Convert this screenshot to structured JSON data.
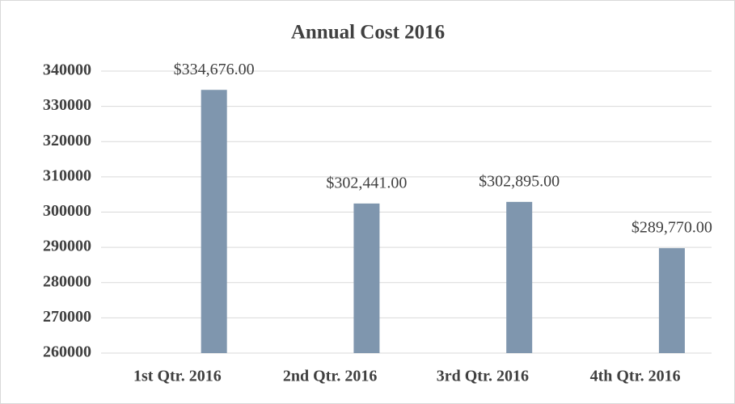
{
  "chart_data": {
    "type": "bar",
    "title": "Annual Cost 2016",
    "categories": [
      "1st Qtr. 2016",
      "2nd Qtr. 2016",
      "3rd Qtr. 2016",
      "4th Qtr. 2016"
    ],
    "values": [
      334676,
      302441,
      302895,
      289770
    ],
    "value_labels": [
      "$334,676.00",
      "$302,441.00",
      "$302,895.00",
      "$289,770.00"
    ],
    "color": "#7f96ae",
    "ylim": [
      260000,
      340000
    ],
    "yticks": [
      260000,
      270000,
      280000,
      290000,
      300000,
      310000,
      320000,
      330000,
      340000
    ],
    "grid": true
  }
}
